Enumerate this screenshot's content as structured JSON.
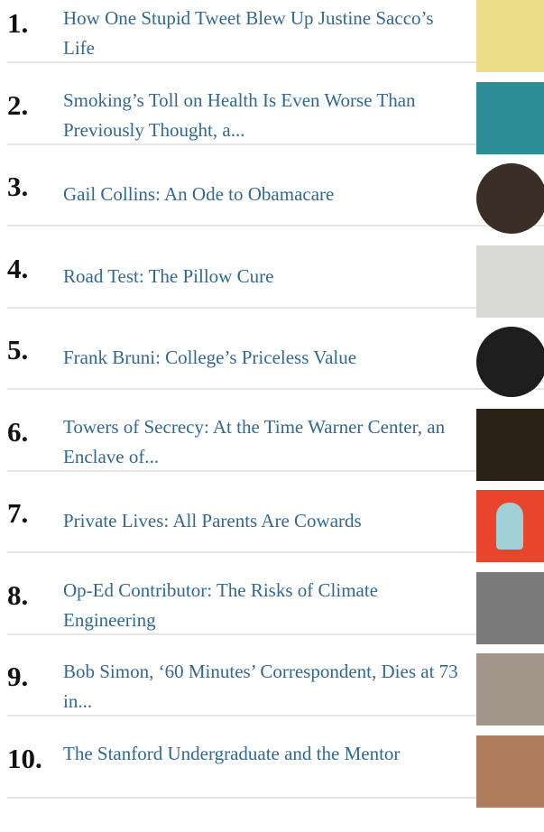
{
  "items": [
    {
      "rank": "1.",
      "title": "How One Stupid Tweet Blew Up Justine Sacco’s Life"
    },
    {
      "rank": "2.",
      "title": "Smoking’s Toll on Health Is Even Worse Than Previously Thought, a..."
    },
    {
      "rank": "3.",
      "title": "Gail Collins: An Ode to Obamacare"
    },
    {
      "rank": "4.",
      "title": "Road Test: The Pillow Cure"
    },
    {
      "rank": "5.",
      "title": "Frank Bruni: College’s Priceless Value"
    },
    {
      "rank": "6.",
      "title": "Towers of Secrecy: At the Time Warner Center, an Enclave of..."
    },
    {
      "rank": "7.",
      "title": "Private Lives: All Parents Are Cowards"
    },
    {
      "rank": "8.",
      "title": "Op-Ed Contributor: The Risks of Climate Engineering"
    },
    {
      "rank": "9.",
      "title": "Bob Simon, ‘60 Minutes’ Correspondent, Dies at 73 in..."
    },
    {
      "rank": "10.",
      "title": "The Stanford Undergraduate and the Mentor"
    }
  ]
}
